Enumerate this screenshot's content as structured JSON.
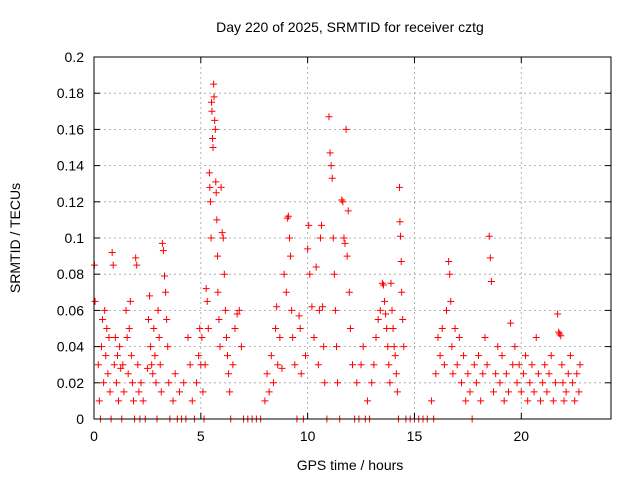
{
  "chart_data": {
    "type": "scatter",
    "title": "Day 220 of 2025, SRMTID for receiver cztg",
    "xlabel": "GPS time / hours",
    "ylabel": "SRMTID / TECUs",
    "xlim": [
      0,
      24.2
    ],
    "ylim": [
      0,
      0.2
    ],
    "x_ticks": [
      "0",
      "5",
      "10",
      "15",
      "20"
    ],
    "x_tick_values": [
      0,
      5,
      10,
      15,
      20
    ],
    "y_ticks": [
      "0",
      "0.02",
      "0.04",
      "0.06",
      "0.08",
      "0.1",
      "0.12",
      "0.14",
      "0.16",
      "0.18",
      "0.2"
    ],
    "y_tick_values": [
      0,
      0.02,
      0.04,
      0.06,
      0.08,
      0.1,
      0.12,
      0.14,
      0.16,
      0.18,
      0.2
    ],
    "grid": true,
    "marker": "+",
    "color": "#ff0000",
    "series": [
      {
        "name": "SRMTID",
        "points": [
          [
            0.02,
            0.085
          ],
          [
            0.05,
            0.065
          ],
          [
            0.2,
            0.03
          ],
          [
            0.25,
            0.01
          ],
          [
            0.3,
            0.0
          ],
          [
            0.35,
            0.04
          ],
          [
            0.4,
            0.055
          ],
          [
            0.45,
            0.02
          ],
          [
            0.5,
            0.06
          ],
          [
            0.55,
            0.035
          ],
          [
            0.6,
            0.05
          ],
          [
            0.65,
            0.025
          ],
          [
            0.7,
            0.045
          ],
          [
            0.75,
            0.015
          ],
          [
            0.8,
            0.0
          ],
          [
            0.85,
            0.092
          ],
          [
            0.9,
            0.085
          ],
          [
            0.95,
            0.03
          ],
          [
            1.0,
            0.045
          ],
          [
            1.05,
            0.02
          ],
          [
            1.1,
            0.035
          ],
          [
            1.15,
            0.01
          ],
          [
            1.2,
            0.04
          ],
          [
            1.25,
            0.028
          ],
          [
            1.3,
            0.0
          ],
          [
            1.35,
            0.03
          ],
          [
            1.4,
            0.015
          ],
          [
            1.5,
            0.06
          ],
          [
            1.55,
            0.045
          ],
          [
            1.6,
            0.025
          ],
          [
            1.65,
            0.05
          ],
          [
            1.7,
            0.065
          ],
          [
            1.75,
            0.035
          ],
          [
            1.8,
            0.02
          ],
          [
            1.85,
            0.01
          ],
          [
            1.9,
            0.0
          ],
          [
            1.95,
            0.089
          ],
          [
            2.0,
            0.085
          ],
          [
            2.05,
            0.03
          ],
          [
            2.1,
            0.015
          ],
          [
            2.15,
            0.0
          ],
          [
            2.2,
            0.02
          ],
          [
            2.3,
            0.01
          ],
          [
            2.4,
            0.0
          ],
          [
            2.5,
            0.028
          ],
          [
            2.55,
            0.055
          ],
          [
            2.6,
            0.068
          ],
          [
            2.65,
            0.04
          ],
          [
            2.7,
            0.03
          ],
          [
            2.75,
            0.025
          ],
          [
            2.8,
            0.05
          ],
          [
            2.85,
            0.035
          ],
          [
            2.9,
            0.02
          ],
          [
            2.95,
            0.0
          ],
          [
            3.0,
            0.06
          ],
          [
            3.05,
            0.045
          ],
          [
            3.1,
            0.03
          ],
          [
            3.15,
            0.015
          ],
          [
            3.2,
            0.097
          ],
          [
            3.25,
            0.093
          ],
          [
            3.3,
            0.079
          ],
          [
            3.35,
            0.07
          ],
          [
            3.4,
            0.055
          ],
          [
            3.45,
            0.04
          ],
          [
            3.5,
            0.02
          ],
          [
            3.55,
            0.0
          ],
          [
            3.7,
            0.01
          ],
          [
            3.8,
            0.025
          ],
          [
            3.9,
            0.0
          ],
          [
            4.0,
            0.015
          ],
          [
            4.1,
            0.0
          ],
          [
            4.2,
            0.02
          ],
          [
            4.3,
            0.0
          ],
          [
            4.4,
            0.045
          ],
          [
            4.5,
            0.03
          ],
          [
            4.6,
            0.01
          ],
          [
            4.7,
            0.0
          ],
          [
            4.8,
            0.02
          ],
          [
            4.9,
            0.035
          ],
          [
            4.95,
            0.05
          ],
          [
            5.0,
            0.03
          ],
          [
            5.05,
            0.045
          ],
          [
            5.1,
            0.015
          ],
          [
            5.15,
            0.0
          ],
          [
            5.2,
            0.03
          ],
          [
            5.25,
            0.072
          ],
          [
            5.3,
            0.065
          ],
          [
            5.35,
            0.05
          ],
          [
            5.4,
            0.136
          ],
          [
            5.42,
            0.128
          ],
          [
            5.45,
            0.12
          ],
          [
            5.48,
            0.1
          ],
          [
            5.5,
            0.175
          ],
          [
            5.52,
            0.17
          ],
          [
            5.55,
            0.155
          ],
          [
            5.57,
            0.15
          ],
          [
            5.6,
            0.185
          ],
          [
            5.62,
            0.178
          ],
          [
            5.65,
            0.165
          ],
          [
            5.68,
            0.16
          ],
          [
            5.7,
            0.131
          ],
          [
            5.72,
            0.125
          ],
          [
            5.75,
            0.11
          ],
          [
            5.78,
            0.09
          ],
          [
            5.8,
            0.07
          ],
          [
            5.85,
            0.055
          ],
          [
            5.9,
            0.04
          ],
          [
            5.95,
            0.128
          ],
          [
            6.0,
            0.103
          ],
          [
            6.05,
            0.1
          ],
          [
            6.1,
            0.08
          ],
          [
            6.15,
            0.06
          ],
          [
            6.2,
            0.045
          ],
          [
            6.25,
            0.035
          ],
          [
            6.3,
            0.025
          ],
          [
            6.35,
            0.015
          ],
          [
            6.4,
            0.0
          ],
          [
            6.5,
            0.03
          ],
          [
            6.6,
            0.05
          ],
          [
            6.7,
            0.058
          ],
          [
            6.8,
            0.06
          ],
          [
            6.9,
            0.04
          ],
          [
            7.0,
            0.0
          ],
          [
            7.2,
            0.0
          ],
          [
            7.4,
            0.0
          ],
          [
            7.6,
            0.0
          ],
          [
            7.8,
            0.0
          ],
          [
            8.0,
            0.01
          ],
          [
            8.1,
            0.025
          ],
          [
            8.2,
            0.015
          ],
          [
            8.3,
            0.035
          ],
          [
            8.4,
            0.02
          ],
          [
            8.5,
            0.05
          ],
          [
            8.55,
            0.062
          ],
          [
            8.6,
            0.03
          ],
          [
            8.7,
            0.045
          ],
          [
            8.8,
            0.028
          ],
          [
            8.9,
            0.08
          ],
          [
            9.0,
            0.07
          ],
          [
            9.05,
            0.111
          ],
          [
            9.1,
            0.112
          ],
          [
            9.15,
            0.1
          ],
          [
            9.2,
            0.09
          ],
          [
            9.25,
            0.06
          ],
          [
            9.3,
            0.045
          ],
          [
            9.4,
            0.03
          ],
          [
            9.5,
            0.0
          ],
          [
            9.6,
            0.057
          ],
          [
            9.65,
            0.05
          ],
          [
            9.7,
            0.025
          ],
          [
            9.8,
            0.0
          ],
          [
            9.9,
            0.035
          ],
          [
            10.0,
            0.094
          ],
          [
            10.05,
            0.107
          ],
          [
            10.1,
            0.08
          ],
          [
            10.2,
            0.062
          ],
          [
            10.3,
            0.045
          ],
          [
            10.4,
            0.084
          ],
          [
            10.5,
            0.03
          ],
          [
            10.55,
            0.06
          ],
          [
            10.6,
            0.1
          ],
          [
            10.65,
            0.107
          ],
          [
            10.7,
            0.062
          ],
          [
            10.75,
            0.04
          ],
          [
            10.8,
            0.02
          ],
          [
            10.9,
            0.0
          ],
          [
            11.0,
            0.167
          ],
          [
            11.05,
            0.147
          ],
          [
            11.1,
            0.14
          ],
          [
            11.15,
            0.133
          ],
          [
            11.2,
            0.1
          ],
          [
            11.25,
            0.08
          ],
          [
            11.3,
            0.06
          ],
          [
            11.35,
            0.04
          ],
          [
            11.4,
            0.02
          ],
          [
            11.5,
            0.0
          ],
          [
            11.6,
            0.121
          ],
          [
            11.65,
            0.12
          ],
          [
            11.7,
            0.1
          ],
          [
            11.75,
            0.097
          ],
          [
            11.8,
            0.16
          ],
          [
            11.85,
            0.09
          ],
          [
            11.9,
            0.115
          ],
          [
            11.95,
            0.07
          ],
          [
            12.0,
            0.05
          ],
          [
            12.1,
            0.03
          ],
          [
            12.2,
            0.0
          ],
          [
            12.3,
            0.02
          ],
          [
            12.4,
            0.0
          ],
          [
            12.5,
            0.03
          ],
          [
            12.6,
            0.04
          ],
          [
            12.7,
            0.0
          ],
          [
            12.8,
            0.01
          ],
          [
            12.9,
            0.0
          ],
          [
            13.0,
            0.02
          ],
          [
            13.1,
            0.03
          ],
          [
            13.2,
            0.045
          ],
          [
            13.3,
            0.055
          ],
          [
            13.4,
            0.06
          ],
          [
            13.5,
            0.075
          ],
          [
            13.55,
            0.074
          ],
          [
            13.6,
            0.065
          ],
          [
            13.65,
            0.058
          ],
          [
            13.7,
            0.05
          ],
          [
            13.75,
            0.04
          ],
          [
            13.8,
            0.03
          ],
          [
            13.85,
            0.02
          ],
          [
            13.9,
            0.075
          ],
          [
            13.95,
            0.06
          ],
          [
            14.0,
            0.05
          ],
          [
            14.05,
            0.04
          ],
          [
            14.1,
            0.035
          ],
          [
            14.15,
            0.025
          ],
          [
            14.2,
            0.015
          ],
          [
            14.25,
            0.0
          ],
          [
            14.3,
            0.128
          ],
          [
            14.32,
            0.109
          ],
          [
            14.35,
            0.101
          ],
          [
            14.38,
            0.087
          ],
          [
            14.4,
            0.07
          ],
          [
            14.45,
            0.055
          ],
          [
            14.5,
            0.04
          ],
          [
            14.6,
            0.0
          ],
          [
            14.8,
            0.0
          ],
          [
            15.0,
            0.0
          ],
          [
            15.2,
            0.0
          ],
          [
            15.4,
            0.0
          ],
          [
            15.6,
            0.0
          ],
          [
            15.8,
            0.01
          ],
          [
            15.9,
            0.0
          ],
          [
            16.0,
            0.025
          ],
          [
            16.1,
            0.045
          ],
          [
            16.2,
            0.035
          ],
          [
            16.3,
            0.05
          ],
          [
            16.4,
            0.03
          ],
          [
            16.5,
            0.06
          ],
          [
            16.6,
            0.087
          ],
          [
            16.65,
            0.08
          ],
          [
            16.7,
            0.065
          ],
          [
            16.75,
            0.04
          ],
          [
            16.8,
            0.025
          ],
          [
            16.9,
            0.05
          ],
          [
            17.0,
            0.03
          ],
          [
            17.1,
            0.045
          ],
          [
            17.2,
            0.02
          ],
          [
            17.3,
            0.035
          ],
          [
            17.4,
            0.01
          ],
          [
            17.5,
            0.025
          ],
          [
            17.6,
            0.015
          ],
          [
            17.7,
            0.0
          ],
          [
            17.8,
            0.03
          ],
          [
            17.9,
            0.02
          ],
          [
            18.0,
            0.035
          ],
          [
            18.1,
            0.01
          ],
          [
            18.2,
            0.025
          ],
          [
            18.3,
            0.045
          ],
          [
            18.4,
            0.03
          ],
          [
            18.5,
            0.101
          ],
          [
            18.55,
            0.089
          ],
          [
            18.6,
            0.076
          ],
          [
            18.7,
            0.015
          ],
          [
            18.8,
            0.025
          ],
          [
            18.9,
            0.04
          ],
          [
            19.0,
            0.02
          ],
          [
            19.1,
            0.035
          ],
          [
            19.2,
            0.01
          ],
          [
            19.3,
            0.025
          ],
          [
            19.4,
            0.015
          ],
          [
            19.5,
            0.053
          ],
          [
            19.6,
            0.03
          ],
          [
            19.7,
            0.04
          ],
          [
            19.8,
            0.02
          ],
          [
            19.9,
            0.03
          ],
          [
            20.0,
            0.015
          ],
          [
            20.1,
            0.025
          ],
          [
            20.2,
            0.035
          ],
          [
            20.3,
            0.01
          ],
          [
            20.4,
            0.02
          ],
          [
            20.5,
            0.03
          ],
          [
            20.6,
            0.015
          ],
          [
            20.7,
            0.045
          ],
          [
            20.8,
            0.025
          ],
          [
            20.9,
            0.01
          ],
          [
            21.0,
            0.02
          ],
          [
            21.1,
            0.03
          ],
          [
            21.2,
            0.015
          ],
          [
            21.3,
            0.025
          ],
          [
            21.4,
            0.035
          ],
          [
            21.5,
            0.01
          ],
          [
            21.6,
            0.02
          ],
          [
            21.7,
            0.058
          ],
          [
            21.75,
            0.048
          ],
          [
            21.8,
            0.047
          ],
          [
            21.85,
            0.046
          ],
          [
            21.9,
            0.03
          ],
          [
            21.95,
            0.02
          ],
          [
            22.0,
            0.01
          ],
          [
            22.1,
            0.015
          ],
          [
            22.2,
            0.025
          ],
          [
            22.3,
            0.035
          ],
          [
            22.4,
            0.02
          ],
          [
            22.5,
            0.01
          ],
          [
            22.6,
            0.025
          ],
          [
            22.7,
            0.015
          ],
          [
            22.75,
            0.03
          ]
        ]
      }
    ]
  }
}
